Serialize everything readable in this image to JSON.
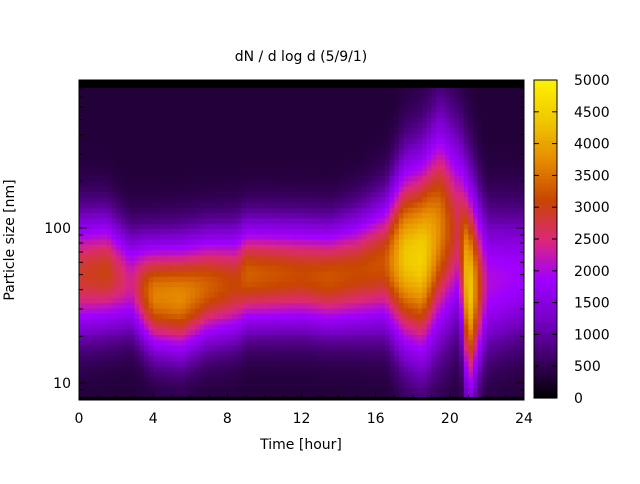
{
  "chart_data": {
    "type": "heatmap",
    "title": "dN / d log d (5/9/1)",
    "xlabel": "Time [hour]",
    "ylabel": "Particle size [nm]",
    "x_range": [
      0,
      24
    ],
    "x_ticks": [
      0,
      4,
      8,
      12,
      16,
      20,
      24
    ],
    "y_scale": "log",
    "y_range_nm": [
      8,
      900
    ],
    "y_ticks": [
      10,
      100
    ],
    "colorbar": {
      "range": [
        0,
        5000
      ],
      "ticks": [
        0,
        500,
        1000,
        1500,
        2000,
        2500,
        3000,
        3500,
        4000,
        4500,
        5000
      ],
      "palette": [
        "#000000",
        "#3c0064",
        "#7800c8",
        "#a000ff",
        "#dc2878",
        "#c84600",
        "#e68c00",
        "#f0c800",
        "#fff000"
      ]
    },
    "time_profile": [
      {
        "t": 0.0,
        "mode_nm": 50,
        "peak": 2550,
        "width_decades": 0.26
      },
      {
        "t": 1.5,
        "mode_nm": 52,
        "peak": 2700,
        "width_decades": 0.25
      },
      {
        "t": 2.8,
        "mode_nm": 45,
        "peak": 2000,
        "width_decades": 0.22
      },
      {
        "t": 4.0,
        "mode_nm": 37,
        "peak": 3300,
        "width_decades": 0.24
      },
      {
        "t": 5.5,
        "mode_nm": 36,
        "peak": 3400,
        "width_decades": 0.25
      },
      {
        "t": 7.0,
        "mode_nm": 42,
        "peak": 3000,
        "width_decades": 0.24
      },
      {
        "t": 8.5,
        "mode_nm": 44,
        "peak": 2700,
        "width_decades": 0.24
      },
      {
        "t": 9.0,
        "mode_nm": 50,
        "peak": 3000,
        "width_decades": 0.23
      },
      {
        "t": 10.5,
        "mode_nm": 50,
        "peak": 2900,
        "width_decades": 0.23
      },
      {
        "t": 12.0,
        "mode_nm": 50,
        "peak": 2800,
        "width_decades": 0.23
      },
      {
        "t": 13.5,
        "mode_nm": 48,
        "peak": 2900,
        "width_decades": 0.23
      },
      {
        "t": 15.0,
        "mode_nm": 52,
        "peak": 2800,
        "width_decades": 0.25
      },
      {
        "t": 16.5,
        "mode_nm": 60,
        "peak": 2900,
        "width_decades": 0.28
      },
      {
        "t": 17.5,
        "mode_nm": 65,
        "peak": 4000,
        "width_decades": 0.38
      },
      {
        "t": 18.5,
        "mode_nm": 65,
        "peak": 4200,
        "width_decades": 0.42
      },
      {
        "t": 19.5,
        "mode_nm": 100,
        "peak": 3300,
        "width_decades": 0.45
      },
      {
        "t": 20.5,
        "mode_nm": 100,
        "peak": 2300,
        "width_decades": 0.4
      },
      {
        "t": 21.0,
        "mode_nm": 40,
        "peak": 4300,
        "width_decades": 0.45
      },
      {
        "t": 22.0,
        "mode_nm": 45,
        "peak": 1700,
        "width_decades": 0.3
      },
      {
        "t": 24.0,
        "mode_nm": 50,
        "peak": 1500,
        "width_decades": 0.28
      }
    ]
  }
}
